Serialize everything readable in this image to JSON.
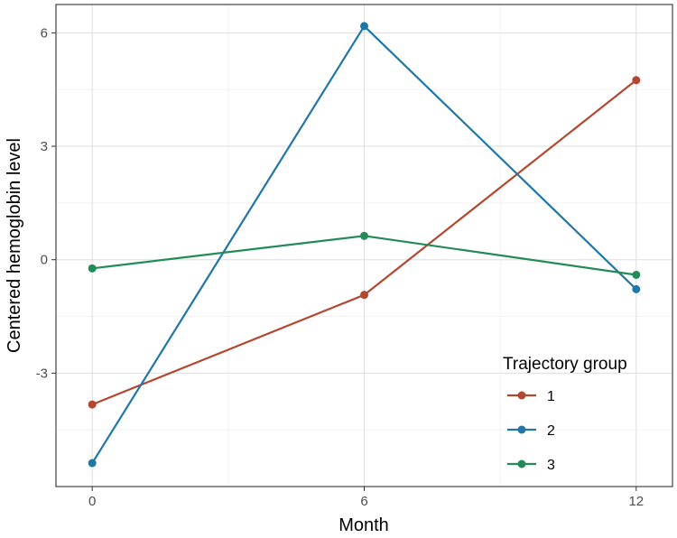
{
  "chart_data": {
    "type": "line",
    "title": "",
    "xlabel": "Month",
    "ylabel": "Centered hemoglobin level",
    "x": [
      0,
      6,
      12
    ],
    "xticks": [
      0,
      6,
      12
    ],
    "xtick_labels": [
      "0",
      "6",
      "12"
    ],
    "yticks": [
      -3,
      0,
      3,
      6
    ],
    "ytick_labels": [
      "-3",
      "0",
      "3",
      "6"
    ],
    "xlim": [
      -0.8,
      12.8
    ],
    "ylim": [
      -6.0,
      6.75
    ],
    "grid": true,
    "legend": {
      "title": "Trajectory group",
      "placement": "bottom-right"
    },
    "series": [
      {
        "name": "1",
        "color": "#b4472f",
        "values": [
          -3.83,
          -0.93,
          4.75
        ]
      },
      {
        "name": "2",
        "color": "#1f77a8",
        "values": [
          -5.38,
          6.18,
          -0.78
        ]
      },
      {
        "name": "3",
        "color": "#238b57",
        "values": [
          -0.23,
          0.63,
          -0.4
        ]
      }
    ]
  }
}
